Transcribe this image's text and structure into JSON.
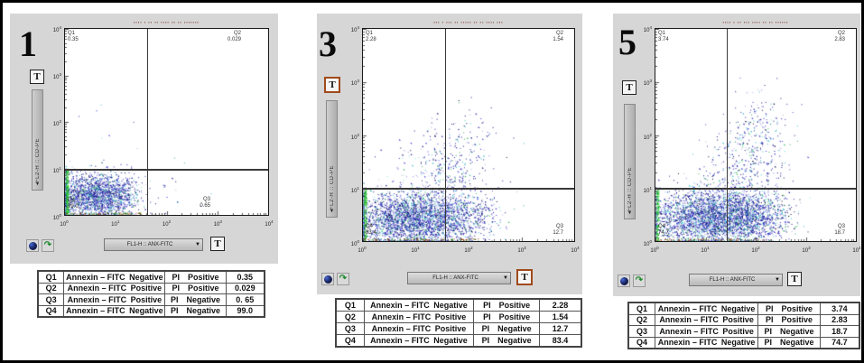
{
  "shared": {
    "t_button_label": "T",
    "dropdown_arrow": "▼",
    "x_axis_label": "FL1-H :: ANX-FITC",
    "y_axis_label": "FL2-H :: CD-PE",
    "tick_exponents": [
      0,
      1,
      2,
      3,
      4
    ],
    "green_arrow_glyph": "↷"
  },
  "style": {
    "panel_bg": "#d6d6d6",
    "gate_line": "#3a3a3a",
    "title_red": "#7a2020",
    "t_highlight_border": "#a14a1c",
    "point_palette": [
      [
        "#14148c",
        30
      ],
      [
        "#2a2ac0",
        18
      ],
      [
        "#4545d4",
        10
      ],
      [
        "#2fb8c8",
        11
      ],
      [
        "#8ae0d6",
        5
      ],
      [
        "#b6aee8",
        14
      ],
      [
        "#38b060",
        7
      ],
      [
        "#060640",
        5
      ]
    ],
    "edge_left_palette": [
      [
        "#21bf2b",
        5
      ],
      [
        "#36d840",
        3
      ],
      [
        "#128a1e",
        2
      ]
    ],
    "edge_bottom_palette": [
      [
        "#8a3a12",
        3
      ],
      [
        "#2f9e38",
        3
      ],
      [
        "#b0541a",
        2
      ]
    ]
  },
  "panels": [
    {
      "label": "1",
      "title_redacted": "▪▪▪▪ ▪ ▪▪ ▪▪ ▪▪▪▪ ▪▪ ▪▪ ▪▪▪▪▪▪▪",
      "t_highlighted": false,
      "quads": {
        "q1": {
          "name": "Q1",
          "value": "0.35"
        },
        "q2": {
          "name": "Q2",
          "value": "0.029"
        },
        "q3": {
          "name": "Q3",
          "value": "0.65"
        },
        "q4": {
          "name": "Q4",
          "value": "99.0"
        }
      },
      "table": {
        "rows": [
          {
            "q": "Q1",
            "marker_word": "Annexin",
            "marker_tail": "– FITC Negative",
            "pi_text": "PI  Positive",
            "value": "0.35"
          },
          {
            "q": "Q2",
            "marker_word": "Annexin",
            "marker_tail": "– FITC Positive",
            "pi_text": "PI  Positive",
            "value": "0.029"
          },
          {
            "q": "Q3",
            "marker_word": "Annexin",
            "marker_tail": "– FITC Positive",
            "pi_text": "PI  Negative",
            "value": "0. 65"
          },
          {
            "q": "Q4",
            "marker_word": "Annexin",
            "marker_tail": "– FITC Negative",
            "pi_text": "PI  Negative",
            "value": "99.0"
          }
        ]
      }
    },
    {
      "label": "3",
      "title_redacted": "▪▪▪ ▪ ▪▪▪ ▪▪ ▪▪▪▪▪ ▪▪ ▪▪ ▪▪▪▪ ▪▪▪",
      "t_highlighted": true,
      "quads": {
        "q1": {
          "name": "Q1",
          "value": "2.28"
        },
        "q2": {
          "name": "Q2",
          "value": "1.54"
        },
        "q3": {
          "name": "Q3",
          "value": "12.7"
        },
        "q4": {
          "name": "Q4",
          "value": "83.4"
        }
      },
      "table": {
        "rows": [
          {
            "q": "Q1",
            "marker_word": "Annexin",
            "marker_tail": "– FITC Negative",
            "pi_text": "PI  Positive",
            "value": "2.28"
          },
          {
            "q": "Q2",
            "marker_word": "Annexin",
            "marker_tail": "– FITC Positive",
            "pi_text": "PI  Positive",
            "value": "1.54"
          },
          {
            "q": "Q3",
            "marker_word": "Annexin",
            "marker_tail": "– FITC Positive",
            "pi_text": "PI  Negative",
            "value": "12.7"
          },
          {
            "q": "Q4",
            "marker_word": "Annexin",
            "marker_tail": "– FITC Negative",
            "pi_text": "PI  Negative",
            "value": "83.4"
          }
        ]
      }
    },
    {
      "label": "5",
      "title_redacted": "▪▪▪▪ ▪ ▪▪ ▪▪▪ ▪▪▪▪ ▪▪ ▪▪ ▪▪▪▪▪▪",
      "t_highlighted": false,
      "quads": {
        "q1": {
          "name": "Q1",
          "value": "3.74"
        },
        "q2": {
          "name": "Q2",
          "value": "2.83"
        },
        "q3": {
          "name": "Q3",
          "value": "18.7"
        },
        "q4": {
          "name": "Q4",
          "value": "74.7"
        }
      },
      "table": {
        "rows": [
          {
            "q": "Q1",
            "marker_word": "Annexin",
            "marker_tail": "– FITC Negative",
            "pi_text": "PI  Positive",
            "value": "3.74"
          },
          {
            "q": "Q2",
            "marker_word": "Annexin",
            "marker_tail": "– FITC Positive",
            "pi_text": "PI  Positive",
            "value": "2.83"
          },
          {
            "q": "Q3",
            "marker_word": "Annexin",
            "marker_tail": "– FITC Positive",
            "pi_text": "PI  Negative",
            "value": "18.7"
          },
          {
            "q": "Q4",
            "marker_word": "Annexin",
            "marker_tail": "– FITC Negative",
            "pi_text": "PI  Negative",
            "value": "74.7"
          }
        ]
      }
    }
  ],
  "chart_data": [
    {
      "type": "scatter",
      "panel": "1",
      "x_axis": {
        "label": "FL1-H :: ANX-FITC",
        "scale": "log10",
        "min": 1,
        "max": 10000
      },
      "y_axis": {
        "label": "FL2-H :: CD-PE",
        "scale": "log10",
        "min": 1,
        "max": 10000
      },
      "gates": {
        "x_threshold_log10": 1.62,
        "y_threshold_log10": 1.0
      },
      "quadrants": [
        {
          "q": "Q1",
          "population": "Annexin-FITC Negative / PI Positive",
          "percent": 0.35
        },
        {
          "q": "Q2",
          "population": "Annexin-FITC Positive / PI Positive",
          "percent": 0.029
        },
        {
          "q": "Q3",
          "population": "Annexin-FITC Positive / PI Negative",
          "percent": 0.65
        },
        {
          "q": "Q4",
          "population": "Annexin-FITC Negative / PI Negative",
          "percent": 99.0
        }
      ],
      "seed": 11,
      "clusters": [
        {
          "kind": "gauss",
          "n": 1500,
          "cx": 0.5,
          "cy": 0.42,
          "sx": 0.4,
          "sy": 0.24
        },
        {
          "kind": "gauss",
          "n": 520,
          "cx": 0.9,
          "cy": 0.4,
          "sx": 0.3,
          "sy": 0.22
        },
        {
          "kind": "gauss",
          "n": 16,
          "cx": 2.0,
          "cy": 0.45,
          "sx": 0.45,
          "sy": 0.25
        },
        {
          "kind": "gauss",
          "n": 10,
          "cx": 1.1,
          "cy": 1.8,
          "sx": 0.7,
          "sy": 0.5
        },
        {
          "kind": "edge_left",
          "n": 200,
          "y0": 0,
          "y1": 1.0
        },
        {
          "kind": "edge_bottom",
          "n": 70,
          "x0": 0,
          "x1": 1.5
        }
      ]
    },
    {
      "type": "scatter",
      "panel": "3",
      "x_axis": {
        "label": "FL1-H :: ANX-FITC",
        "scale": "log10",
        "min": 1,
        "max": 10000
      },
      "y_axis": {
        "label": "FL2-H :: CD-PE",
        "scale": "log10",
        "min": 1,
        "max": 10000
      },
      "gates": {
        "x_threshold_log10": 1.56,
        "y_threshold_log10": 1.0
      },
      "quadrants": [
        {
          "q": "Q1",
          "population": "Annexin-FITC Negative / PI Positive",
          "percent": 2.28
        },
        {
          "q": "Q2",
          "population": "Annexin-FITC Positive / PI Positive",
          "percent": 1.54
        },
        {
          "q": "Q3",
          "population": "Annexin-FITC Positive / PI Negative",
          "percent": 12.7
        },
        {
          "q": "Q4",
          "population": "Annexin-FITC Negative / PI Negative",
          "percent": 83.4
        }
      ],
      "seed": 23,
      "clusters": [
        {
          "kind": "gauss",
          "n": 2100,
          "cx": 0.8,
          "cy": 0.42,
          "sx": 0.5,
          "sy": 0.25
        },
        {
          "kind": "gauss",
          "n": 900,
          "cx": 1.5,
          "cy": 0.45,
          "sx": 0.45,
          "sy": 0.25
        },
        {
          "kind": "gauss",
          "n": 170,
          "cx": 2.05,
          "cy": 0.4,
          "sx": 0.3,
          "sy": 0.25
        },
        {
          "kind": "gauss",
          "n": 300,
          "cx": 1.55,
          "cy": 1.35,
          "sx": 0.45,
          "sy": 0.35
        },
        {
          "kind": "gauss",
          "n": 70,
          "cx": 1.9,
          "cy": 2.0,
          "sx": 0.35,
          "sy": 0.3
        },
        {
          "kind": "edge_left",
          "n": 150,
          "y0": 0,
          "y1": 1.0
        },
        {
          "kind": "edge_bottom",
          "n": 90,
          "x0": 0,
          "x1": 2.2
        }
      ]
    },
    {
      "type": "scatter",
      "panel": "5",
      "x_axis": {
        "label": "FL1-H :: ANX-FITC",
        "scale": "log10",
        "min": 1,
        "max": 10000
      },
      "y_axis": {
        "label": "FL2-H :: CD-PE",
        "scale": "log10",
        "min": 1,
        "max": 10000
      },
      "gates": {
        "x_threshold_log10": 1.42,
        "y_threshold_log10": 1.0
      },
      "quadrants": [
        {
          "q": "Q1",
          "population": "Annexin-FITC Negative / PI Positive",
          "percent": 3.74
        },
        {
          "q": "Q2",
          "population": "Annexin-FITC Positive / PI Positive",
          "percent": 2.83
        },
        {
          "q": "Q3",
          "population": "Annexin-FITC Positive / PI Negative",
          "percent": 18.7
        },
        {
          "q": "Q4",
          "population": "Annexin-FITC Negative / PI Negative",
          "percent": 74.7
        }
      ],
      "seed": 37,
      "clusters": [
        {
          "kind": "gauss",
          "n": 2300,
          "cx": 1.0,
          "cy": 0.45,
          "sx": 0.55,
          "sy": 0.26
        },
        {
          "kind": "gauss",
          "n": 1000,
          "cx": 1.7,
          "cy": 0.5,
          "sx": 0.45,
          "sy": 0.27
        },
        {
          "kind": "gauss",
          "n": 230,
          "cx": 2.1,
          "cy": 0.4,
          "sx": 0.3,
          "sy": 0.25
        },
        {
          "kind": "gauss",
          "n": 380,
          "cx": 1.8,
          "cy": 1.4,
          "sx": 0.45,
          "sy": 0.45
        },
        {
          "kind": "gauss",
          "n": 130,
          "cx": 2.1,
          "cy": 2.2,
          "sx": 0.3,
          "sy": 0.35
        },
        {
          "kind": "edge_left",
          "n": 130,
          "y0": 0,
          "y1": 1.0
        },
        {
          "kind": "edge_bottom",
          "n": 80,
          "x0": 0,
          "x1": 2.3
        }
      ]
    }
  ]
}
